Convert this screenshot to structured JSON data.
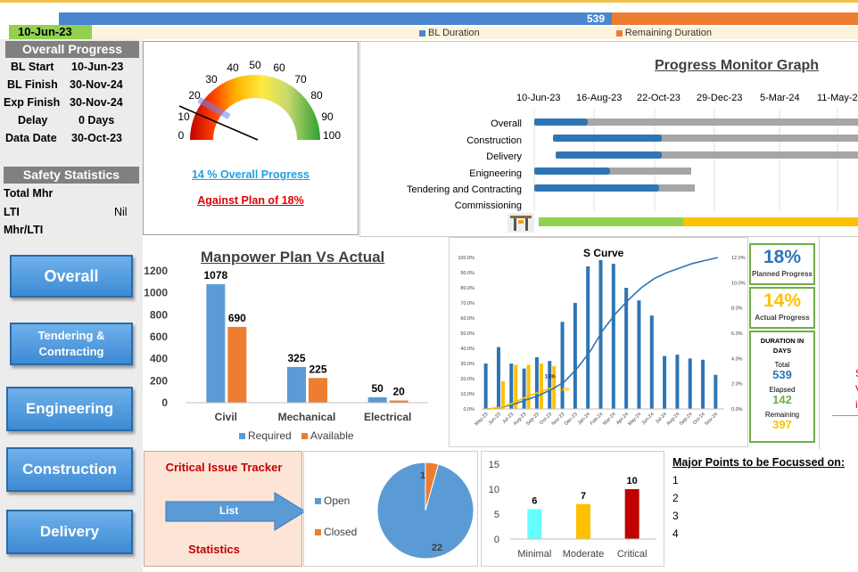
{
  "timeline": {
    "date": "10-Jun-23",
    "bl_value": "539",
    "bl_legend": "BL Duration",
    "remaining_legend": "Remaining Duration",
    "colors": {
      "bl": "#4a86d0",
      "remaining": "#ed7d31",
      "date_bg": "#92d050"
    }
  },
  "overall_progress": {
    "title": "Overall Progress",
    "rows": [
      {
        "label": "BL Start",
        "value": "10-Jun-23"
      },
      {
        "label": "BL Finish",
        "value": "30-Nov-24"
      },
      {
        "label": "Exp Finish",
        "value": "30-Nov-24"
      },
      {
        "label": "Delay",
        "value": "0 Days"
      },
      {
        "label": "Data Date",
        "value": "30-Oct-23"
      }
    ]
  },
  "safety": {
    "title": "Safety Statistics",
    "rows": [
      {
        "label": "Total Mhr",
        "value": ""
      },
      {
        "label": "LTI",
        "value": "Nil"
      },
      {
        "label": "Mhr/LTI",
        "value": ""
      }
    ]
  },
  "gauge": {
    "ticks": [
      "0",
      "10",
      "20",
      "30",
      "40",
      "50",
      "60",
      "70",
      "80",
      "90",
      "100"
    ],
    "value": 14,
    "progress_text": "14 % Overall Progress",
    "plan_text": "Against Plan of 18%"
  },
  "progress_monitor": {
    "title": "Progress Monitor Graph",
    "dates": [
      "10-Jun-23",
      "16-Aug-23",
      "22-Oct-23",
      "29-Dec-23",
      "5-Mar-24",
      "11-May-2"
    ],
    "rows": [
      "Overall",
      "Construction",
      "Delivery",
      "Enigneering",
      "Tendering and Contracting",
      "Commissioning"
    ]
  },
  "nav": {
    "overall": "Overall",
    "tendering": "Tendering & Contracting",
    "engineering": "Engineering",
    "construction": "Construction",
    "delivery": "Delivery"
  },
  "manpower": {
    "title": "Manpower Plan Vs Actual",
    "yticks": [
      "1200",
      "1000",
      "800",
      "600",
      "400",
      "200",
      "0"
    ],
    "legend_required": "Required",
    "legend_available": "Available"
  },
  "scurve": {
    "title": "S Curve",
    "left_ticks": [
      "100.0%",
      "90.0%",
      "80.0%",
      "70.0%",
      "60.0%",
      "50.0%",
      "40.0%",
      "30.0%",
      "20.0%",
      "10.0%",
      "0.0%"
    ],
    "right_ticks": [
      "12.0%",
      "10.0%",
      "8.0%",
      "6.0%",
      "4.0%",
      "2.0%",
      "0.0%"
    ],
    "months": [
      "May-23",
      "Jun-23",
      "Jul-23",
      "Aug-23",
      "Sep-23",
      "Oct-23",
      "Nov-23",
      "Dec-23",
      "Jan-24",
      "Feb-24",
      "Mar-24",
      "Apr-24",
      "May-24",
      "Jun-24",
      "Jul-24",
      "Aug-24",
      "Sep-24",
      "Oct-24",
      "Nov-24"
    ],
    "label_18": "18%",
    "label_14": "14%"
  },
  "kpi": {
    "planned_value": "18%",
    "planned_label": "Planned Progress",
    "actual_value": "14%",
    "actual_label": "Actual Progress",
    "duration_title": "DURATION IN DAYS",
    "total_label": "Total",
    "total_value": "539",
    "elapsed_label": "Elapsed",
    "elapsed_value": "142",
    "remaining_label": "Remaining",
    "remaining_value": "397"
  },
  "issue_tracker": {
    "title": "Critical Issue Tracker",
    "arrow_label": "List",
    "statistics": "Statistics"
  },
  "pie": {
    "legend_open": "Open",
    "legend_closed": "Closed",
    "open_value": "22",
    "closed_value": "1"
  },
  "severity": {
    "yticks": [
      "15",
      "10",
      "5",
      "0"
    ]
  },
  "major_points": {
    "title": "Major Points to be Focussed on:",
    "items": [
      "1",
      "2",
      "3",
      "4"
    ]
  },
  "right_clip": {
    "line1": "S",
    "line2": "V",
    "line3": "i"
  },
  "chart_data": [
    {
      "type": "bar",
      "title": "Manpower Plan Vs Actual",
      "categories": [
        "Civil",
        "Mechanical",
        "Electrical"
      ],
      "series": [
        {
          "name": "Required",
          "values": [
            1078,
            325,
            50
          ],
          "color": "#5b9bd5"
        },
        {
          "name": "Available",
          "values": [
            690,
            225,
            20
          ],
          "color": "#ed7d31"
        }
      ],
      "ylim": [
        0,
        1200
      ]
    },
    {
      "type": "bar",
      "title": "S Curve",
      "categories": [
        "May-23",
        "Jun-23",
        "Jul-23",
        "Aug-23",
        "Sep-23",
        "Oct-23",
        "Nov-23",
        "Dec-23",
        "Jan-24",
        "Feb-24",
        "Mar-24",
        "Apr-24",
        "May-24",
        "Jun-24",
        "Jul-24",
        "Aug-24",
        "Sep-24",
        "Oct-24",
        "Nov-24"
      ],
      "series": [
        {
          "name": "",
          "values": [
            3.6,
            4.9,
            3.6,
            3.2,
            4.1,
            3.8,
            6.9,
            8.4,
            11.3,
            11.8,
            11.5,
            9.6,
            8.6,
            7.4,
            4.2,
            4.3,
            4.0,
            3.9,
            2.7
          ],
          "color": "#2e75b6"
        },
        {
          "name": "",
          "values": [
            0,
            2.2,
            3.5,
            3.5,
            3.6,
            3.4,
            0,
            0,
            0,
            0,
            0,
            0,
            0,
            0,
            0,
            0,
            0,
            0,
            0
          ],
          "color": "#ffc000"
        }
      ],
      "cumulative_planned": [
        0,
        1,
        3,
        6,
        9,
        13,
        18,
        27,
        38,
        52,
        63,
        72,
        80,
        86,
        90,
        93,
        96,
        98,
        100
      ],
      "cumulative_actual": [
        0,
        1,
        4,
        8,
        11,
        14
      ],
      "ylim_left": [
        0,
        100
      ],
      "ylim_right": [
        0,
        12
      ]
    },
    {
      "type": "pie",
      "categories": [
        "Open",
        "Closed"
      ],
      "values": [
        22,
        1
      ],
      "colors": [
        "#5b9bd5",
        "#ed7d31"
      ]
    },
    {
      "type": "bar",
      "categories": [
        "Minimal",
        "Moderate",
        "Critical"
      ],
      "values": [
        6,
        7,
        10
      ],
      "colors": [
        "#66ffff",
        "#ffc000",
        "#c00000"
      ],
      "ylim": [
        0,
        15
      ]
    }
  ]
}
